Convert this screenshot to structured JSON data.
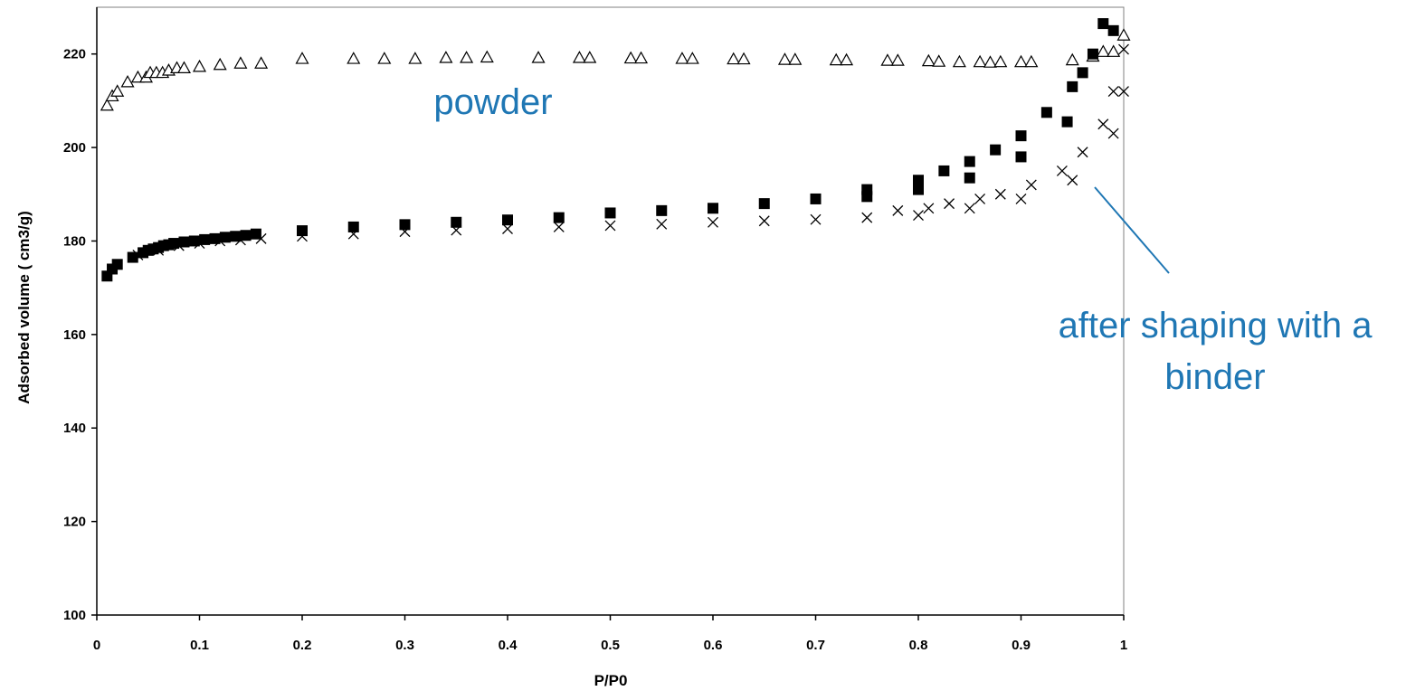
{
  "chart_data": {
    "type": "scatter",
    "title": "",
    "xlabel": "P/P0",
    "ylabel": "Adsorbed volume ( cm3/g)",
    "xlim": [
      0,
      1
    ],
    "ylim": [
      100,
      230
    ],
    "xticks": [
      0,
      0.1,
      0.2,
      0.3,
      0.4,
      0.5,
      0.6,
      0.7,
      0.8,
      0.9,
      1
    ],
    "xtick_labels": [
      "0",
      "0.1",
      "0.2",
      "0.3",
      "0.4",
      "0.5",
      "0.6",
      "0.7",
      "0.8",
      "0.9",
      "1"
    ],
    "yticks": [
      100,
      120,
      140,
      160,
      180,
      200,
      220
    ],
    "ytick_labels": [
      "100",
      "120",
      "140",
      "160",
      "180",
      "200",
      "220"
    ],
    "grid": false,
    "legend": "none",
    "annotation_color": "#1F77B4",
    "annotations": [
      {
        "lines": [
          "powder"
        ],
        "target_series": "triangles"
      },
      {
        "lines": [
          "after shaping with a",
          "binder"
        ],
        "target_series": "squares",
        "has_pointer_line": true
      }
    ],
    "series": [
      {
        "marker": "triangle-open",
        "x": [
          0.01,
          0.015,
          0.02,
          0.03,
          0.04,
          0.048,
          0.052,
          0.058,
          0.064,
          0.07,
          0.078,
          0.085,
          0.1,
          0.12,
          0.14,
          0.16,
          0.2,
          0.25,
          0.28,
          0.31,
          0.34,
          0.36,
          0.38,
          0.43,
          0.47,
          0.48,
          0.52,
          0.53,
          0.57,
          0.58,
          0.62,
          0.63,
          0.67,
          0.68,
          0.72,
          0.73,
          0.77,
          0.78,
          0.81,
          0.82,
          0.84,
          0.86,
          0.87,
          0.88,
          0.9,
          0.91,
          0.95,
          0.97,
          0.98,
          0.99,
          1.0
        ],
        "y": [
          209,
          211,
          212,
          214,
          215,
          215,
          216,
          216,
          216,
          216.5,
          217,
          217,
          217.3,
          217.7,
          218,
          218,
          219,
          219,
          219,
          219,
          219.2,
          219.2,
          219.3,
          219.2,
          219.2,
          219.2,
          219.1,
          219.1,
          219.0,
          219.0,
          218.9,
          218.9,
          218.8,
          218.8,
          218.7,
          218.7,
          218.6,
          218.6,
          218.5,
          218.4,
          218.3,
          218.3,
          218.2,
          218.3,
          218.3,
          218.3,
          218.7,
          219.5,
          220.5,
          220.5,
          224
        ]
      },
      {
        "marker": "square-filled",
        "x": [
          0.01,
          0.015,
          0.02,
          0.035,
          0.045,
          0.05,
          0.055,
          0.06,
          0.065,
          0.07,
          0.075,
          0.085,
          0.095,
          0.105,
          0.115,
          0.125,
          0.135,
          0.145,
          0.155,
          0.2,
          0.25,
          0.3,
          0.35,
          0.4,
          0.45,
          0.5,
          0.55,
          0.6,
          0.65,
          0.7,
          0.75,
          0.75,
          0.8,
          0.8,
          0.825,
          0.85,
          0.85,
          0.875,
          0.9,
          0.9,
          0.925,
          0.945,
          0.95,
          0.96,
          0.97,
          0.98,
          0.99
        ],
        "y": [
          172.5,
          174,
          175,
          176.5,
          177.5,
          178,
          178.3,
          178.6,
          179,
          179.2,
          179.5,
          179.8,
          180,
          180.3,
          180.5,
          180.8,
          181,
          181.2,
          181.5,
          182.2,
          183,
          183.5,
          184,
          184.5,
          185,
          186,
          186.5,
          187,
          188,
          189,
          191,
          189.5,
          193,
          191,
          195,
          197,
          193.5,
          199.5,
          202.5,
          198,
          207.5,
          205.5,
          213,
          216,
          220,
          226.5,
          225
        ]
      },
      {
        "marker": "cross",
        "x": [
          0.02,
          0.04,
          0.06,
          0.08,
          0.1,
          0.12,
          0.14,
          0.16,
          0.2,
          0.25,
          0.3,
          0.35,
          0.4,
          0.45,
          0.5,
          0.55,
          0.6,
          0.65,
          0.7,
          0.75,
          0.78,
          0.8,
          0.81,
          0.83,
          0.85,
          0.86,
          0.88,
          0.9,
          0.91,
          0.94,
          0.95,
          0.96,
          0.98,
          0.99,
          0.99,
          1.0,
          1.0
        ],
        "y": [
          175,
          177,
          178,
          179,
          179.5,
          180,
          180.2,
          180.5,
          181,
          181.5,
          182,
          182.3,
          182.6,
          183,
          183.3,
          183.6,
          184,
          184.3,
          184.6,
          185,
          186.5,
          185.5,
          187,
          188,
          187,
          189,
          190,
          189,
          192,
          195,
          193,
          199,
          205,
          203,
          212,
          212,
          221
        ]
      }
    ]
  }
}
